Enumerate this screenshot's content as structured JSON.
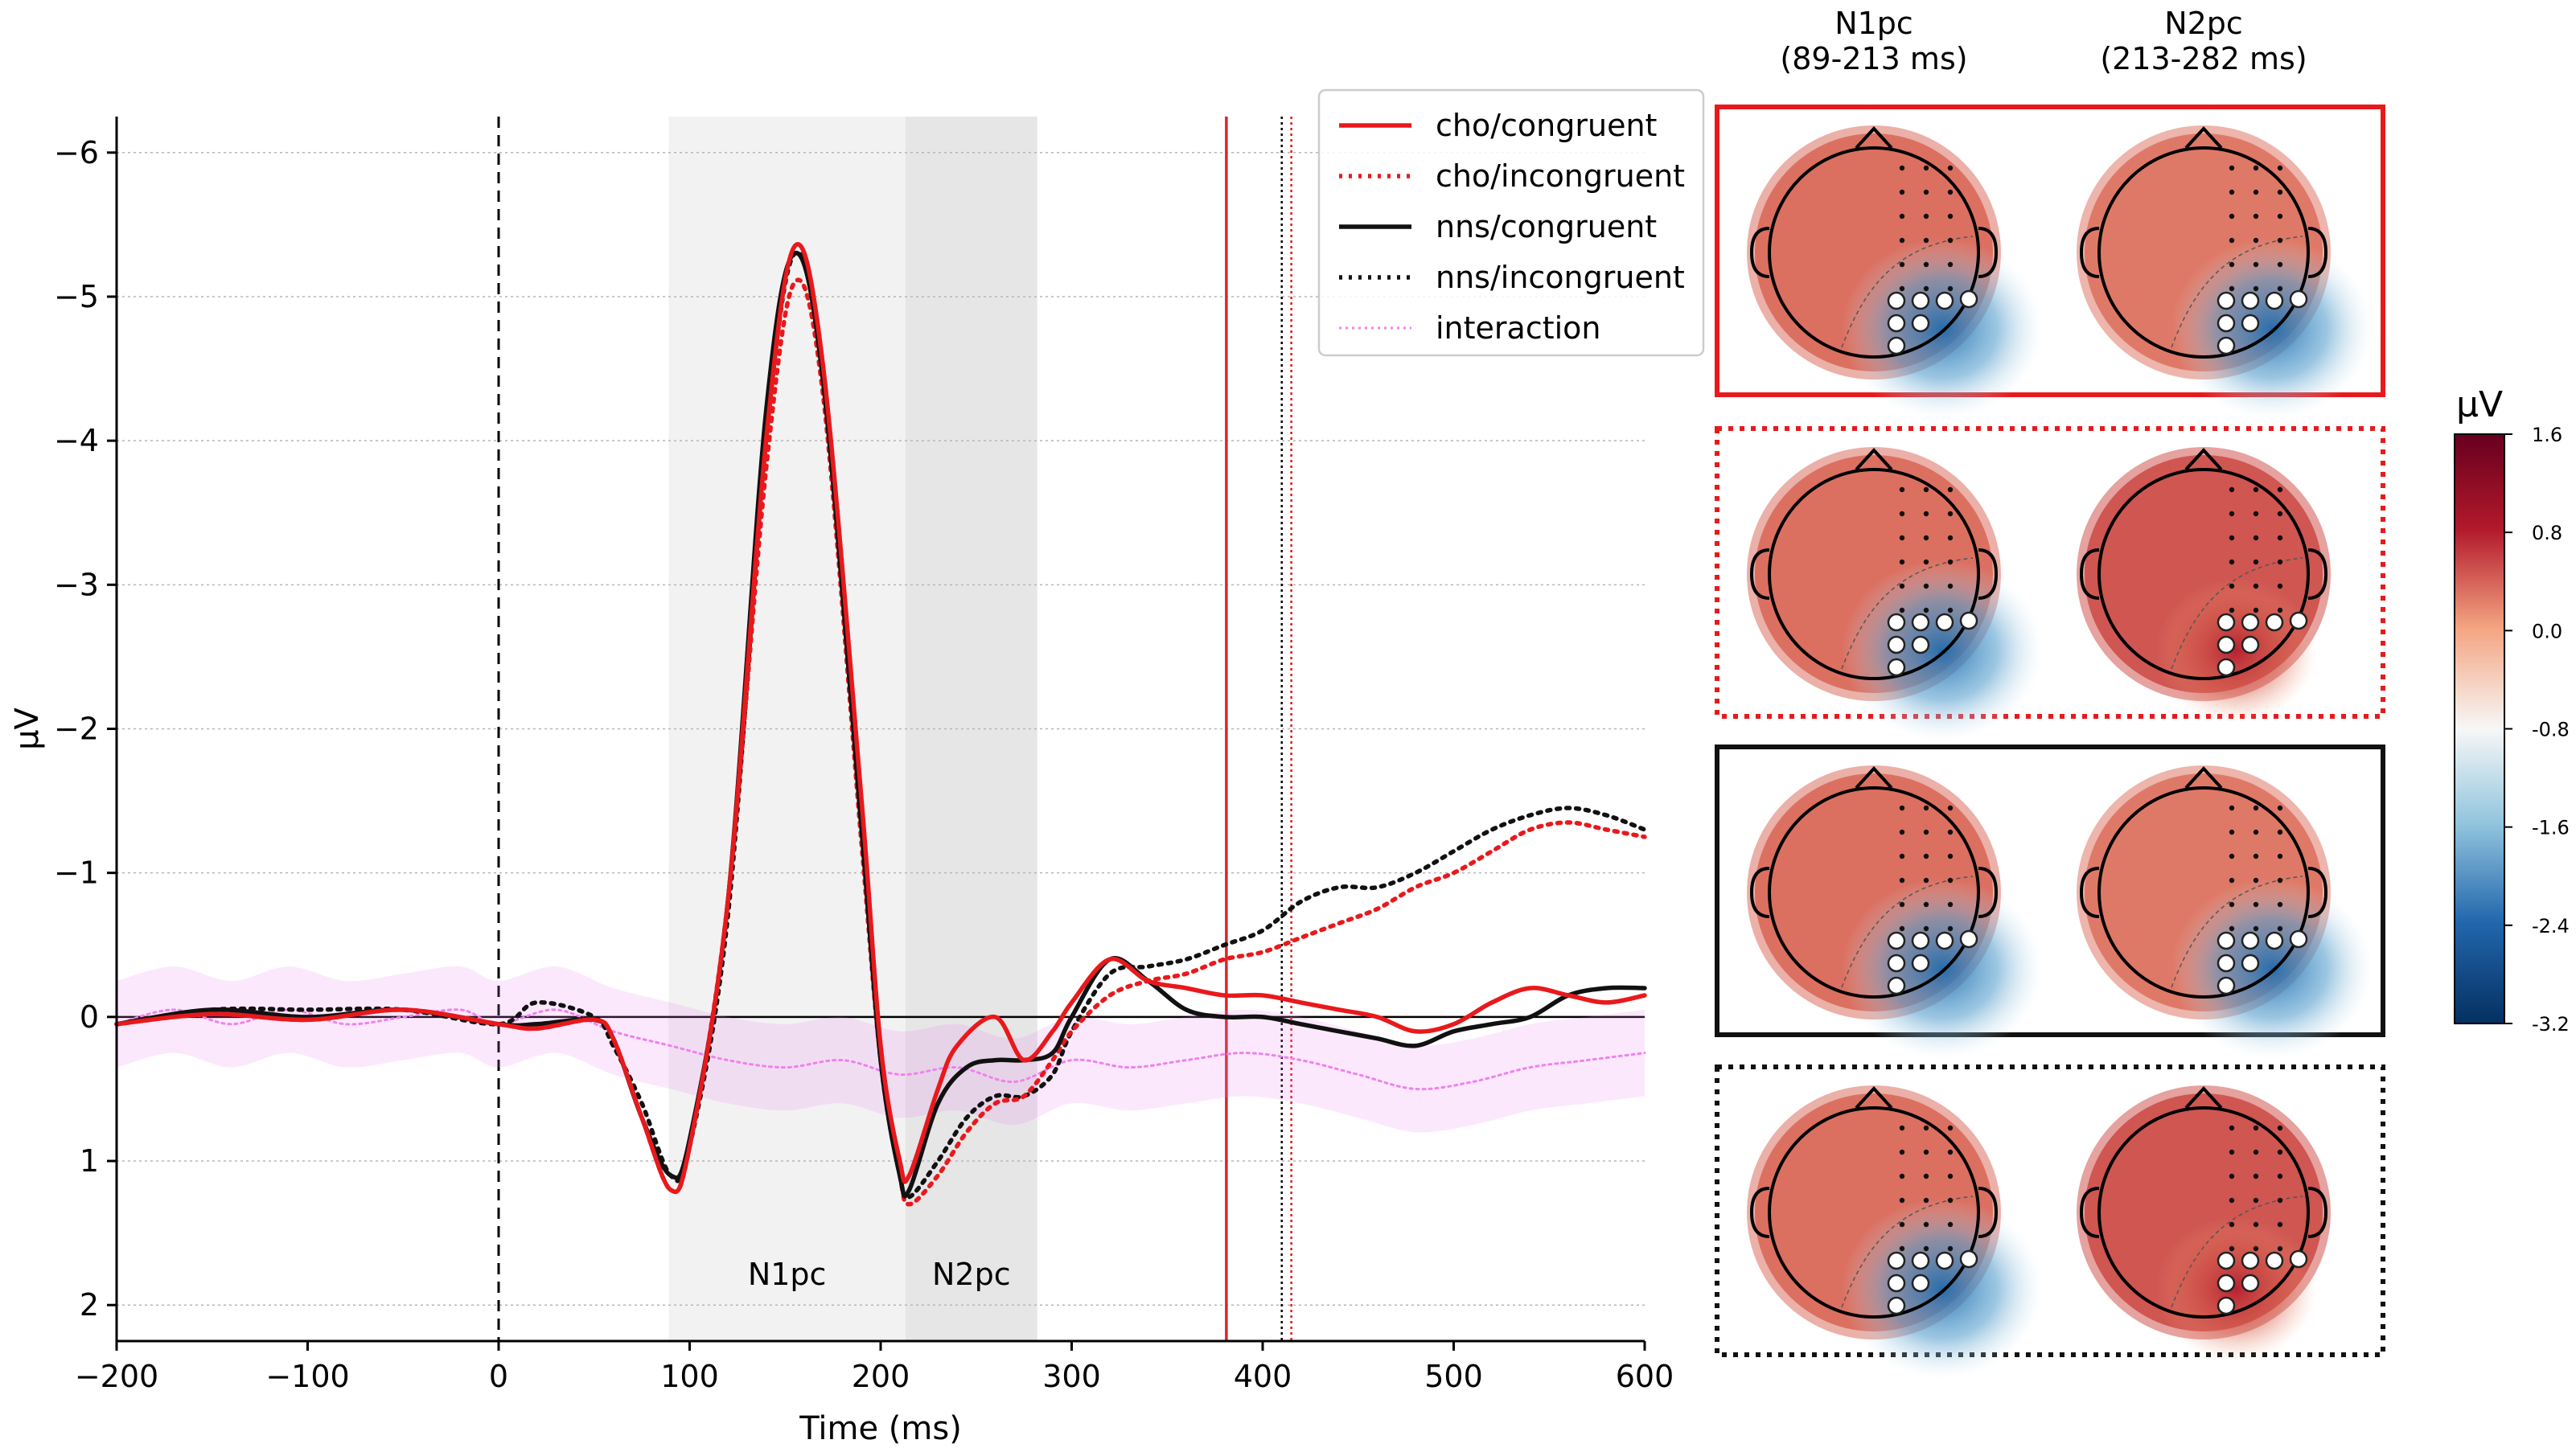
{
  "chart_data": [
    {
      "type": "line",
      "xlabel": "Time (ms)",
      "ylabel": "µV",
      "xlim": [
        -200,
        600
      ],
      "ylim": [
        2.25,
        -6.25
      ],
      "y_inverted": true,
      "grid": "horizontal",
      "legend_position": "top-right",
      "x_ticks": [
        "−200",
        "−100",
        "0",
        "100",
        "200",
        "300",
        "400",
        "500",
        "600"
      ],
      "x_tick_values": [
        -200,
        -100,
        0,
        100,
        200,
        300,
        400,
        500,
        600
      ],
      "y_ticks": [
        "−6",
        "−5",
        "−4",
        "−3",
        "−2",
        "−1",
        "0",
        "1",
        "2"
      ],
      "y_tick_values": [
        -6,
        -5,
        -4,
        -3,
        -2,
        -1,
        0,
        1,
        2
      ],
      "windows": [
        {
          "label": "N1pc",
          "start": 89,
          "end": 213,
          "color": "#f2f2f2"
        },
        {
          "label": "N2pc",
          "start": 213,
          "end": 282,
          "color": "#e6e6e6"
        }
      ],
      "onset_line": {
        "x": 0
      },
      "latency_markers": [
        {
          "x": 381,
          "color": "#d62728",
          "style": "solid"
        },
        {
          "x": 410,
          "color": "#000000",
          "style": "dotted"
        },
        {
          "x": 415,
          "color": "#e31a1c",
          "style": "dotted"
        }
      ],
      "series": [
        {
          "name": "cho/congruent",
          "color": "#e8191c",
          "style": "solid",
          "x": [
            -200,
            -150,
            -100,
            -50,
            0,
            20,
            50,
            60,
            75,
            90,
            100,
            120,
            140,
            155,
            170,
            190,
            200,
            210,
            215,
            230,
            240,
            260,
            275,
            290,
            300,
            320,
            340,
            360,
            380,
            400,
            420,
            440,
            460,
            480,
            500,
            520,
            540,
            560,
            580,
            600
          ],
          "y": [
            0.05,
            -0.02,
            0.02,
            -0.05,
            0.05,
            0.08,
            0.02,
            0.15,
            0.7,
            1.2,
            0.9,
            -0.8,
            -4.0,
            -5.35,
            -4.5,
            -1.5,
            0.2,
            1.0,
            1.1,
            0.5,
            0.2,
            0.0,
            0.3,
            0.1,
            -0.1,
            -0.4,
            -0.25,
            -0.2,
            -0.15,
            -0.15,
            -0.1,
            -0.05,
            0.0,
            0.1,
            0.05,
            -0.1,
            -0.2,
            -0.15,
            -0.1,
            -0.15
          ]
        },
        {
          "name": "cho/incongruent",
          "color": "#e8191c",
          "style": "dotted",
          "x": [
            -200,
            -150,
            -100,
            -50,
            0,
            20,
            50,
            60,
            75,
            90,
            100,
            120,
            140,
            155,
            170,
            190,
            200,
            210,
            215,
            230,
            245,
            260,
            275,
            290,
            300,
            320,
            340,
            360,
            380,
            400,
            420,
            440,
            460,
            480,
            500,
            520,
            540,
            560,
            580,
            600
          ],
          "y": [
            0.05,
            -0.02,
            0.02,
            -0.05,
            0.05,
            0.08,
            0.02,
            0.15,
            0.7,
            1.2,
            0.9,
            -0.8,
            -3.8,
            -5.1,
            -4.3,
            -1.2,
            0.3,
            1.1,
            1.3,
            1.1,
            0.8,
            0.6,
            0.55,
            0.3,
            0.1,
            -0.15,
            -0.25,
            -0.3,
            -0.4,
            -0.45,
            -0.55,
            -0.65,
            -0.75,
            -0.9,
            -1.0,
            -1.15,
            -1.3,
            -1.35,
            -1.3,
            -1.25
          ]
        },
        {
          "name": "nns/congruent",
          "color": "#111111",
          "style": "solid",
          "x": [
            -200,
            -150,
            -100,
            -50,
            0,
            20,
            50,
            60,
            75,
            90,
            100,
            120,
            140,
            155,
            170,
            190,
            200,
            210,
            215,
            230,
            245,
            260,
            275,
            290,
            300,
            320,
            340,
            360,
            380,
            400,
            420,
            440,
            460,
            480,
            500,
            520,
            540,
            560,
            580,
            600
          ],
          "y": [
            0.05,
            -0.05,
            0.0,
            -0.05,
            0.05,
            0.05,
            0.02,
            0.15,
            0.7,
            1.1,
            0.85,
            -0.8,
            -4.2,
            -5.3,
            -4.4,
            -1.3,
            0.3,
            1.1,
            1.2,
            0.6,
            0.35,
            0.3,
            0.3,
            0.25,
            0.0,
            -0.4,
            -0.25,
            -0.05,
            0.0,
            0.0,
            0.05,
            0.1,
            0.15,
            0.2,
            0.1,
            0.05,
            0.0,
            -0.15,
            -0.2,
            -0.2
          ]
        },
        {
          "name": "nns/incongruent",
          "color": "#111111",
          "style": "dotted",
          "x": [
            -200,
            -150,
            -100,
            -50,
            0,
            20,
            50,
            60,
            75,
            90,
            100,
            120,
            140,
            155,
            170,
            190,
            200,
            210,
            215,
            230,
            245,
            260,
            275,
            290,
            300,
            320,
            340,
            360,
            380,
            400,
            420,
            440,
            460,
            480,
            500,
            520,
            540,
            560,
            580,
            600
          ],
          "y": [
            0.05,
            -0.05,
            -0.05,
            -0.05,
            0.05,
            -0.1,
            0.0,
            0.2,
            0.6,
            1.1,
            0.9,
            -0.7,
            -4.0,
            -5.3,
            -4.4,
            -1.3,
            0.3,
            1.1,
            1.25,
            1.0,
            0.7,
            0.55,
            0.55,
            0.4,
            0.1,
            -0.3,
            -0.35,
            -0.4,
            -0.5,
            -0.6,
            -0.8,
            -0.9,
            -0.9,
            -1.0,
            -1.15,
            -1.3,
            -1.4,
            -1.45,
            -1.4,
            -1.3
          ]
        },
        {
          "name": "interaction",
          "color": "#ee82ee",
          "style": "dotted",
          "x": [
            -200,
            -170,
            -140,
            -110,
            -80,
            -50,
            -20,
            0,
            30,
            60,
            90,
            120,
            150,
            180,
            210,
            240,
            270,
            300,
            330,
            360,
            390,
            420,
            450,
            480,
            510,
            540,
            570,
            600
          ],
          "y": [
            0.05,
            -0.05,
            0.05,
            -0.05,
            0.05,
            0.0,
            -0.05,
            0.05,
            -0.05,
            0.1,
            0.2,
            0.3,
            0.35,
            0.3,
            0.4,
            0.35,
            0.45,
            0.3,
            0.35,
            0.3,
            0.25,
            0.3,
            0.4,
            0.5,
            0.45,
            0.35,
            0.3,
            0.25
          ],
          "ci_halfwidth": 0.3
        }
      ]
    },
    {
      "type": "heatmap",
      "description_free": true,
      "column_titles": [
        "N1pc\n(89-213 ms)",
        "N2pc\n(213-282 ms)"
      ],
      "colorbar": {
        "label": "µV",
        "ticks": [
          "1.6",
          "0.8",
          "0.0",
          "-0.8",
          "-1.6",
          "-2.4",
          "-3.2"
        ],
        "tick_values": [
          1.6,
          0.8,
          0.0,
          -0.8,
          -1.6,
          -2.4,
          -3.2
        ],
        "range": [
          -3.2,
          1.6
        ],
        "colormap": "RdBu_r"
      },
      "rows": [
        {
          "condition": "cho/congruent",
          "frame_color": "#e8191c",
          "frame_style": "solid",
          "values_uV": [
            -1.2,
            -0.6
          ]
        },
        {
          "condition": "cho/incongruent",
          "frame_color": "#e8191c",
          "frame_style": "dotted",
          "values_uV": [
            -1.3,
            0.9
          ]
        },
        {
          "condition": "nns/congruent",
          "frame_color": "#111111",
          "frame_style": "solid",
          "values_uV": [
            -1.3,
            -0.6
          ]
        },
        {
          "condition": "nns/incongruent",
          "frame_color": "#111111",
          "frame_style": "dotted",
          "values_uV": [
            -1.5,
            0.6
          ]
        }
      ]
    }
  ]
}
